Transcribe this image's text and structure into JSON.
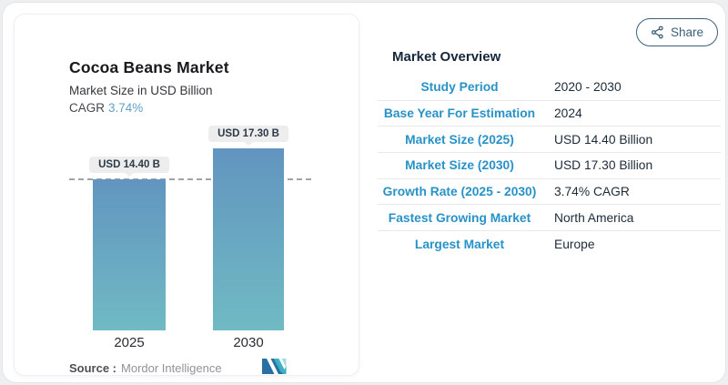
{
  "share": {
    "label": "Share"
  },
  "chart_card": {
    "title": "Cocoa Beans Market",
    "subtitle": "Market Size in USD Billion",
    "cagr_label": "CAGR",
    "cagr_value": "3.74%",
    "source_label": "Source :",
    "source_value": "Mordor Intelligence",
    "logo_name": "mordor-intelligence-logo"
  },
  "chart_data": {
    "type": "bar",
    "title": "Cocoa Beans Market",
    "ylabel": "Market Size in USD Billion",
    "categories": [
      "2025",
      "2030"
    ],
    "values": [
      14.4,
      17.3
    ],
    "value_labels": [
      "USD 14.40 B",
      "USD 17.30 B"
    ],
    "cagr_percent": 3.74,
    "reference_line_value": 14.4,
    "grid": false,
    "legend": false,
    "bar_gradient_top": "#6295c0",
    "bar_gradient_bottom": "#70bac3"
  },
  "overview": {
    "title": "Market Overview",
    "rows": [
      {
        "label": "Study Period",
        "value": "2020 - 2030"
      },
      {
        "label": "Base Year For Estimation",
        "value": "2024"
      },
      {
        "label": "Market Size (2025)",
        "value": "USD 14.40 Billion"
      },
      {
        "label": "Market Size (2030)",
        "value": "USD 17.30 Billion"
      },
      {
        "label": "Growth Rate (2025 - 2030)",
        "value": "3.74% CAGR"
      },
      {
        "label": "Fastest Growing Market",
        "value": "North America"
      },
      {
        "label": "Largest Market",
        "value": "Europe"
      }
    ]
  },
  "colors": {
    "accent_blue": "#2792c8",
    "navy_text": "#1c2b39",
    "cagr_blue": "#61a2c6",
    "share_teal": "#3a607a",
    "chip_bg": "#ededee",
    "dash_gray": "#9ea4a9",
    "bar_top": "#6295c0",
    "bar_bottom": "#70bac3"
  }
}
